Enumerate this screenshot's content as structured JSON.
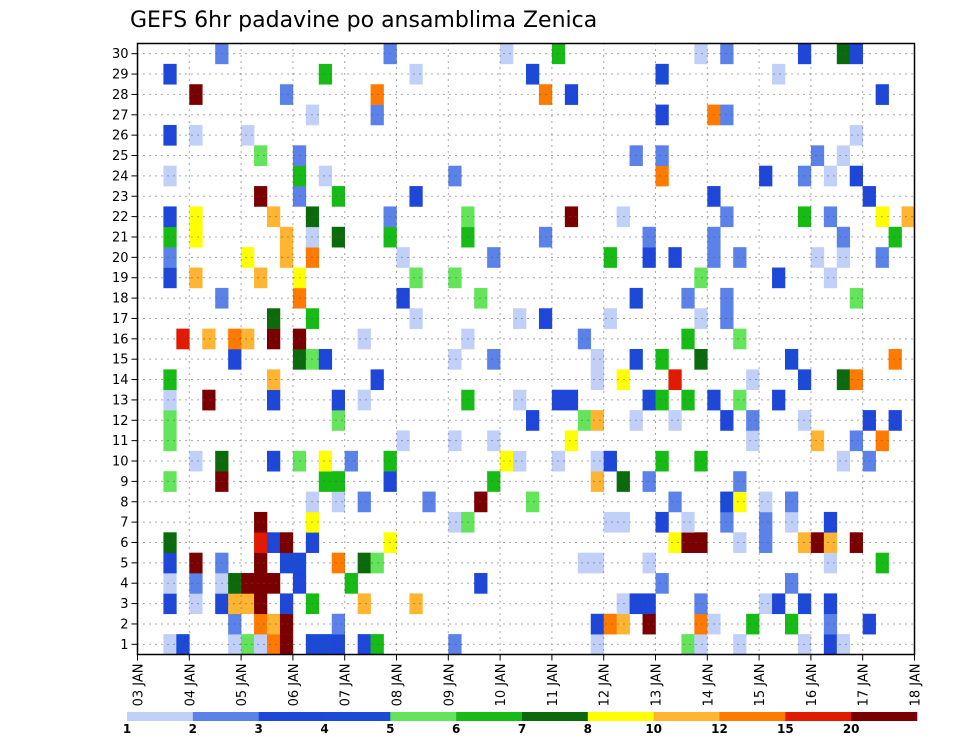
{
  "chart_data": {
    "type": "heatmap",
    "title": "GEFS 6hr padavine po ansamblima Zenica",
    "y_tick_labels": [
      "1",
      "2",
      "3",
      "4",
      "5",
      "6",
      "7",
      "8",
      "9",
      "10",
      "11",
      "12",
      "13",
      "14",
      "15",
      "16",
      "17",
      "18",
      "19",
      "20",
      "21",
      "22",
      "23",
      "24",
      "25",
      "26",
      "27",
      "28",
      "29",
      "30"
    ],
    "x_tick_labels": [
      "03 JAN",
      "04 JAN",
      "05 JAN",
      "06 JAN",
      "07 JAN",
      "08 JAN",
      "09 JAN",
      "10 JAN",
      "11 JAN",
      "12 JAN",
      "13 JAN",
      "14 JAN",
      "15 JAN",
      "16 JAN",
      "17 JAN",
      "18 JAN"
    ],
    "colorbar": {
      "labels": [
        "1",
        "2",
        "3",
        "4",
        "5",
        "6",
        "7",
        "8",
        "10",
        "12",
        "15",
        "20"
      ],
      "colors": [
        "#c0d0f8",
        "#5a82e8",
        "#1e46d8",
        "#1a4ad6",
        "#64e45a",
        "#16bb16",
        "#0b6a0b",
        "#ffff00",
        "#ffb432",
        "#ff7a00",
        "#e11a00",
        "#7a0000"
      ]
    },
    "grid": true,
    "members": 30,
    "steps": 60,
    "rows": [
      "..1C...1K1M:.CC3.35.....2..........1......41..1....1.31.....",
      ".......2.9H:...2...................3PH.N...91..5..5..2..3...",
      "..3.1.38H:.3.J...E...8...............133...2....13.C.3......",
      "..1.2.1D:::.3...J.........3.............2.........2.........",
      "..3.:.2..B.CC..9.D4...............11...1.............1...Q..",
      "..D......A3B.3.....7.....................7BB..1.2..8:E.B....",
      ".........B...O..........14..........11..3.1..2..2.1..3.....",
      ".............1.1.2....2...N...4..........2...C7.1.2..........",
      "..4...:.......55...3.......5.......8.6.2......2.............",
      "....1.D...3.K.7.2..G........71..1..13...J..5..........1.2...",
      "..4.................1...1..1.....7.............1....8..2.9..",
      "..4............4..............3...48..1..1...3.2...1....3.3.",
      "..1..:....3....3.1.......J...1..33.....C5.5.3.4..3..........",
      "..5.......E.......3................1.7...F.....1...C..DP....",
      ".......3....DK3.........1..2.......1..C.G..D......C.......M.",
      "...F.H.MH.B.N....1.......1........2.......5...4.............",
      "..........D..J.......1.......1.3....1......1.2..............",
      "......2.....M.......3.....4...........C...2..2.........4....",
      "..3.8....8..7........4..4..................4.....3...1......",
      "..2.....7..8.M......1......2........5..3.3..2.2.....1.1..2..",
      "..5.7......8.1.6...5.....5.....2.......2....2.........2...5.",
      "..3.7.....8..6.....2.....4.......B...1.......2.....5.2...7.8",
      ".........:..2..5.....3......................3...........3...",
      "..1.........5.1.........2...............9.......3..2.1.3....",
      ".........4..2.........................2.2...........2.1.....",
      "..3.1...1..............................................1.....",
      ".............1....2.....................3...M2..............",
      "....N......2......M............9.3.......................3..",
      "..3...........5......1........C.........C........1..........",
      "......2............2........1...5..........1.2.....3..L3...."
    ]
  }
}
